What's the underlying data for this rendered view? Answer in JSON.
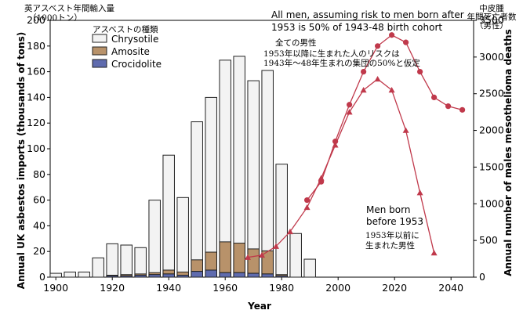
{
  "chart_data": {
    "type": "bar+line",
    "x_axis": {
      "label": "Year",
      "range": [
        1898,
        2048
      ],
      "ticks": [
        1900,
        1920,
        1940,
        1960,
        1980,
        2000,
        2020,
        2040
      ]
    },
    "y_left": {
      "label": "Annual UK asbestos imports (thousands of tons)",
      "range": [
        0,
        200
      ],
      "ticks": [
        0,
        20,
        40,
        60,
        80,
        100,
        120,
        140,
        160,
        180,
        200
      ],
      "jp_label": "英アスベスト年間輸入量",
      "jp_unit": "（1000トン）"
    },
    "y_right": {
      "label": "Annual number of males mesothelioma deaths",
      "range": [
        0,
        3500
      ],
      "ticks": [
        0,
        500,
        1000,
        1500,
        2000,
        2500,
        3000,
        3500
      ],
      "jp_label": [
        "中皮腫",
        "年間死亡者数",
        "（男性）"
      ]
    },
    "legend": {
      "title_jp": "アスベストの種類",
      "position": "top-left",
      "items": [
        {
          "name": "Chrysotile",
          "color": "#f3f3f3"
        },
        {
          "name": "Amosite",
          "color": "#b8926a"
        },
        {
          "name": "Crocidolite",
          "color": "#5f6bae"
        }
      ]
    },
    "bars": {
      "years": [
        1900,
        1905,
        1910,
        1915,
        1920,
        1925,
        1930,
        1935,
        1940,
        1945,
        1950,
        1955,
        1960,
        1965,
        1970,
        1975,
        1980,
        1985,
        1990
      ],
      "total": [
        3,
        4,
        4,
        15,
        26,
        25,
        23,
        60,
        95,
        62,
        121,
        140,
        169,
        172,
        153,
        161,
        88,
        34,
        14
      ],
      "amosite": [
        0,
        0,
        0,
        0,
        0.5,
        1,
        1,
        1.5,
        3,
        2.5,
        9,
        14,
        24,
        23,
        19,
        18,
        1,
        0,
        0
      ],
      "crocidolite": [
        0,
        0,
        0,
        0,
        1,
        1,
        1.5,
        2,
        2.5,
        1.5,
        4.5,
        5.5,
        3.5,
        3.5,
        3,
        2.5,
        1,
        0,
        0
      ]
    },
    "series": [
      {
        "name": "All men, assuming risk to men born after 1953 is 50% of 1943-48 birth cohort",
        "color": "#c0394b",
        "marker": "circle",
        "x": [
          1989,
          1994,
          1999,
          2004,
          2009,
          2014,
          2019,
          2024,
          2029,
          2034,
          2039,
          2044
        ],
        "y": [
          1050,
          1300,
          1850,
          2350,
          2800,
          3150,
          3300,
          3200,
          2800,
          2450,
          2330,
          2280
        ]
      },
      {
        "name": "Men born before 1953",
        "color": "#c0394b",
        "marker": "triangle",
        "x": [
          1968,
          1973,
          1978,
          1983,
          1989,
          1994,
          1999,
          2004,
          2009,
          2014,
          2019,
          2024,
          2029,
          2034
        ],
        "y": [
          270,
          300,
          420,
          620,
          950,
          1350,
          1800,
          2250,
          2550,
          2700,
          2550,
          2000,
          1150,
          330
        ]
      }
    ],
    "annotations": {
      "all_men_en": [
        "All men, assuming risk to men born after",
        "1953 is 50% of 1943-48 birth cohort"
      ],
      "all_men_jp": [
        "全ての男性",
        "1953年以降に生まれた人のリスクは",
        "1943年～48年生まれの集団の50%と仮定"
      ],
      "born_before_en": [
        "Men born",
        "before 1953"
      ],
      "born_before_jp": [
        "1953年以前に",
        "生まれた男性"
      ]
    }
  }
}
